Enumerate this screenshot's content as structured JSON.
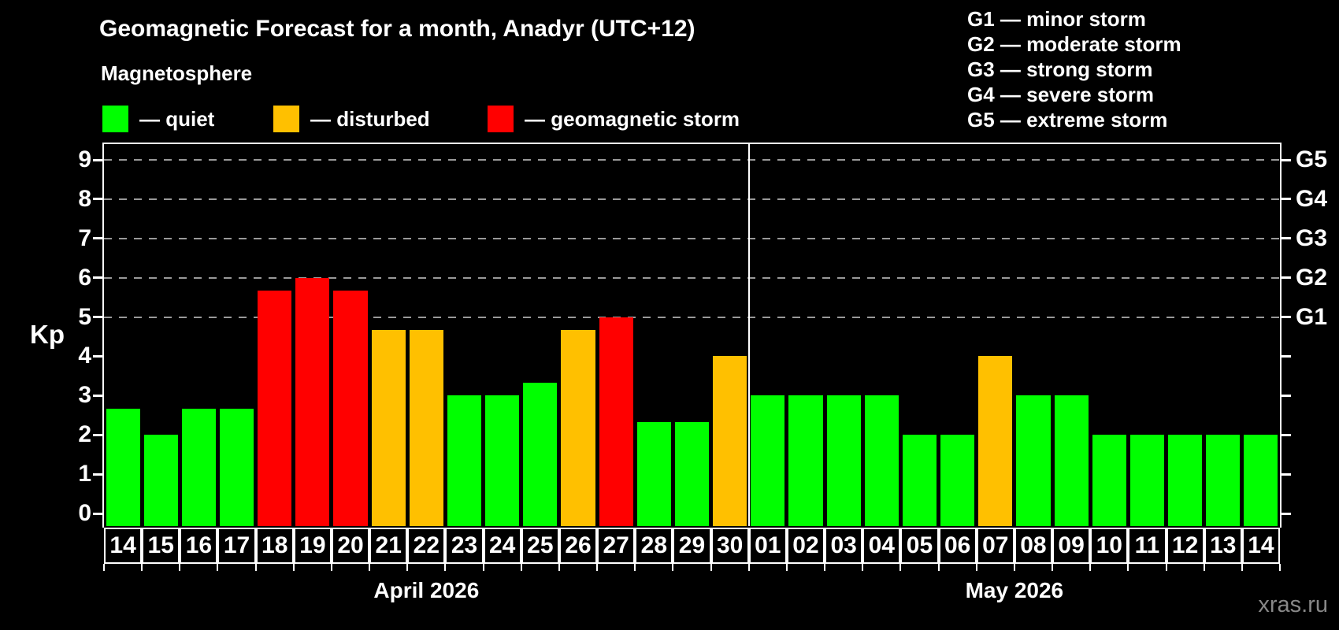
{
  "title": "Geomagnetic Forecast for a month, Anadyr (UTC+12)",
  "subtitle": "Magnetosphere",
  "legend": {
    "items": [
      {
        "label": "— quiet",
        "status": "quiet",
        "color": "#00ff00"
      },
      {
        "label": "— disturbed",
        "status": "disturbed",
        "color": "#ffc000"
      },
      {
        "label": "— geomagnetic storm",
        "status": "storm",
        "color": "#ff0000"
      }
    ]
  },
  "g_scale_legend": [
    "G1 — minor storm",
    "G2 — moderate storm",
    "G3 — strong storm",
    "G4 — severe storm",
    "G5 — extreme storm"
  ],
  "watermark": "xras.ru",
  "chart_data": {
    "type": "bar",
    "title": "Geomagnetic Forecast for a month, Anadyr (UTC+12)",
    "ylabel": "Kp",
    "ylim": [
      0,
      9
    ],
    "yticks": [
      0,
      1,
      2,
      3,
      4,
      5,
      6,
      7,
      8,
      9
    ],
    "gridlines_at": [
      5,
      6,
      7,
      8,
      9
    ],
    "grid": "dashed horizontal at storm levels only",
    "legend_position": "top",
    "right_axis_labels": [
      {
        "kp": 9,
        "label": "G5"
      },
      {
        "kp": 8,
        "label": "G4"
      },
      {
        "kp": 7,
        "label": "G3"
      },
      {
        "kp": 6,
        "label": "G2"
      },
      {
        "kp": 5,
        "label": "G1"
      }
    ],
    "series_colors": {
      "quiet": "#00ff00",
      "disturbed": "#ffc000",
      "storm": "#ff0000"
    },
    "months": [
      {
        "label": "April 2026",
        "days": 17
      },
      {
        "label": "May 2026",
        "days": 14
      }
    ],
    "bars": [
      {
        "day": "14",
        "month": "April 2026",
        "value": 2.67,
        "status": "quiet"
      },
      {
        "day": "15",
        "month": "April 2026",
        "value": 2.0,
        "status": "quiet"
      },
      {
        "day": "16",
        "month": "April 2026",
        "value": 2.67,
        "status": "quiet"
      },
      {
        "day": "17",
        "month": "April 2026",
        "value": 2.67,
        "status": "quiet"
      },
      {
        "day": "18",
        "month": "April 2026",
        "value": 5.67,
        "status": "storm"
      },
      {
        "day": "19",
        "month": "April 2026",
        "value": 6.0,
        "status": "storm"
      },
      {
        "day": "20",
        "month": "April 2026",
        "value": 5.67,
        "status": "storm"
      },
      {
        "day": "21",
        "month": "April 2026",
        "value": 4.67,
        "status": "disturbed"
      },
      {
        "day": "22",
        "month": "April 2026",
        "value": 4.67,
        "status": "disturbed"
      },
      {
        "day": "23",
        "month": "April 2026",
        "value": 3.0,
        "status": "quiet"
      },
      {
        "day": "24",
        "month": "April 2026",
        "value": 3.0,
        "status": "quiet"
      },
      {
        "day": "25",
        "month": "April 2026",
        "value": 3.33,
        "status": "quiet"
      },
      {
        "day": "26",
        "month": "April 2026",
        "value": 4.67,
        "status": "disturbed"
      },
      {
        "day": "27",
        "month": "April 2026",
        "value": 5.0,
        "status": "storm"
      },
      {
        "day": "28",
        "month": "April 2026",
        "value": 2.33,
        "status": "quiet"
      },
      {
        "day": "29",
        "month": "April 2026",
        "value": 2.33,
        "status": "quiet"
      },
      {
        "day": "30",
        "month": "April 2026",
        "value": 4.0,
        "status": "disturbed"
      },
      {
        "day": "01",
        "month": "May 2026",
        "value": 3.0,
        "status": "quiet"
      },
      {
        "day": "02",
        "month": "May 2026",
        "value": 3.0,
        "status": "quiet"
      },
      {
        "day": "03",
        "month": "May 2026",
        "value": 3.0,
        "status": "quiet"
      },
      {
        "day": "04",
        "month": "May 2026",
        "value": 3.0,
        "status": "quiet"
      },
      {
        "day": "05",
        "month": "May 2026",
        "value": 2.0,
        "status": "quiet"
      },
      {
        "day": "06",
        "month": "May 2026",
        "value": 2.0,
        "status": "quiet"
      },
      {
        "day": "07",
        "month": "May 2026",
        "value": 4.0,
        "status": "disturbed"
      },
      {
        "day": "08",
        "month": "May 2026",
        "value": 3.0,
        "status": "quiet"
      },
      {
        "day": "09",
        "month": "May 2026",
        "value": 3.0,
        "status": "quiet"
      },
      {
        "day": "10",
        "month": "May 2026",
        "value": 2.0,
        "status": "quiet"
      },
      {
        "day": "11",
        "month": "May 2026",
        "value": 2.0,
        "status": "quiet"
      },
      {
        "day": "12",
        "month": "May 2026",
        "value": 2.0,
        "status": "quiet"
      },
      {
        "day": "13",
        "month": "May 2026",
        "value": 2.0,
        "status": "quiet"
      },
      {
        "day": "14",
        "month": "May 2026",
        "value": 2.0,
        "status": "quiet"
      }
    ]
  }
}
